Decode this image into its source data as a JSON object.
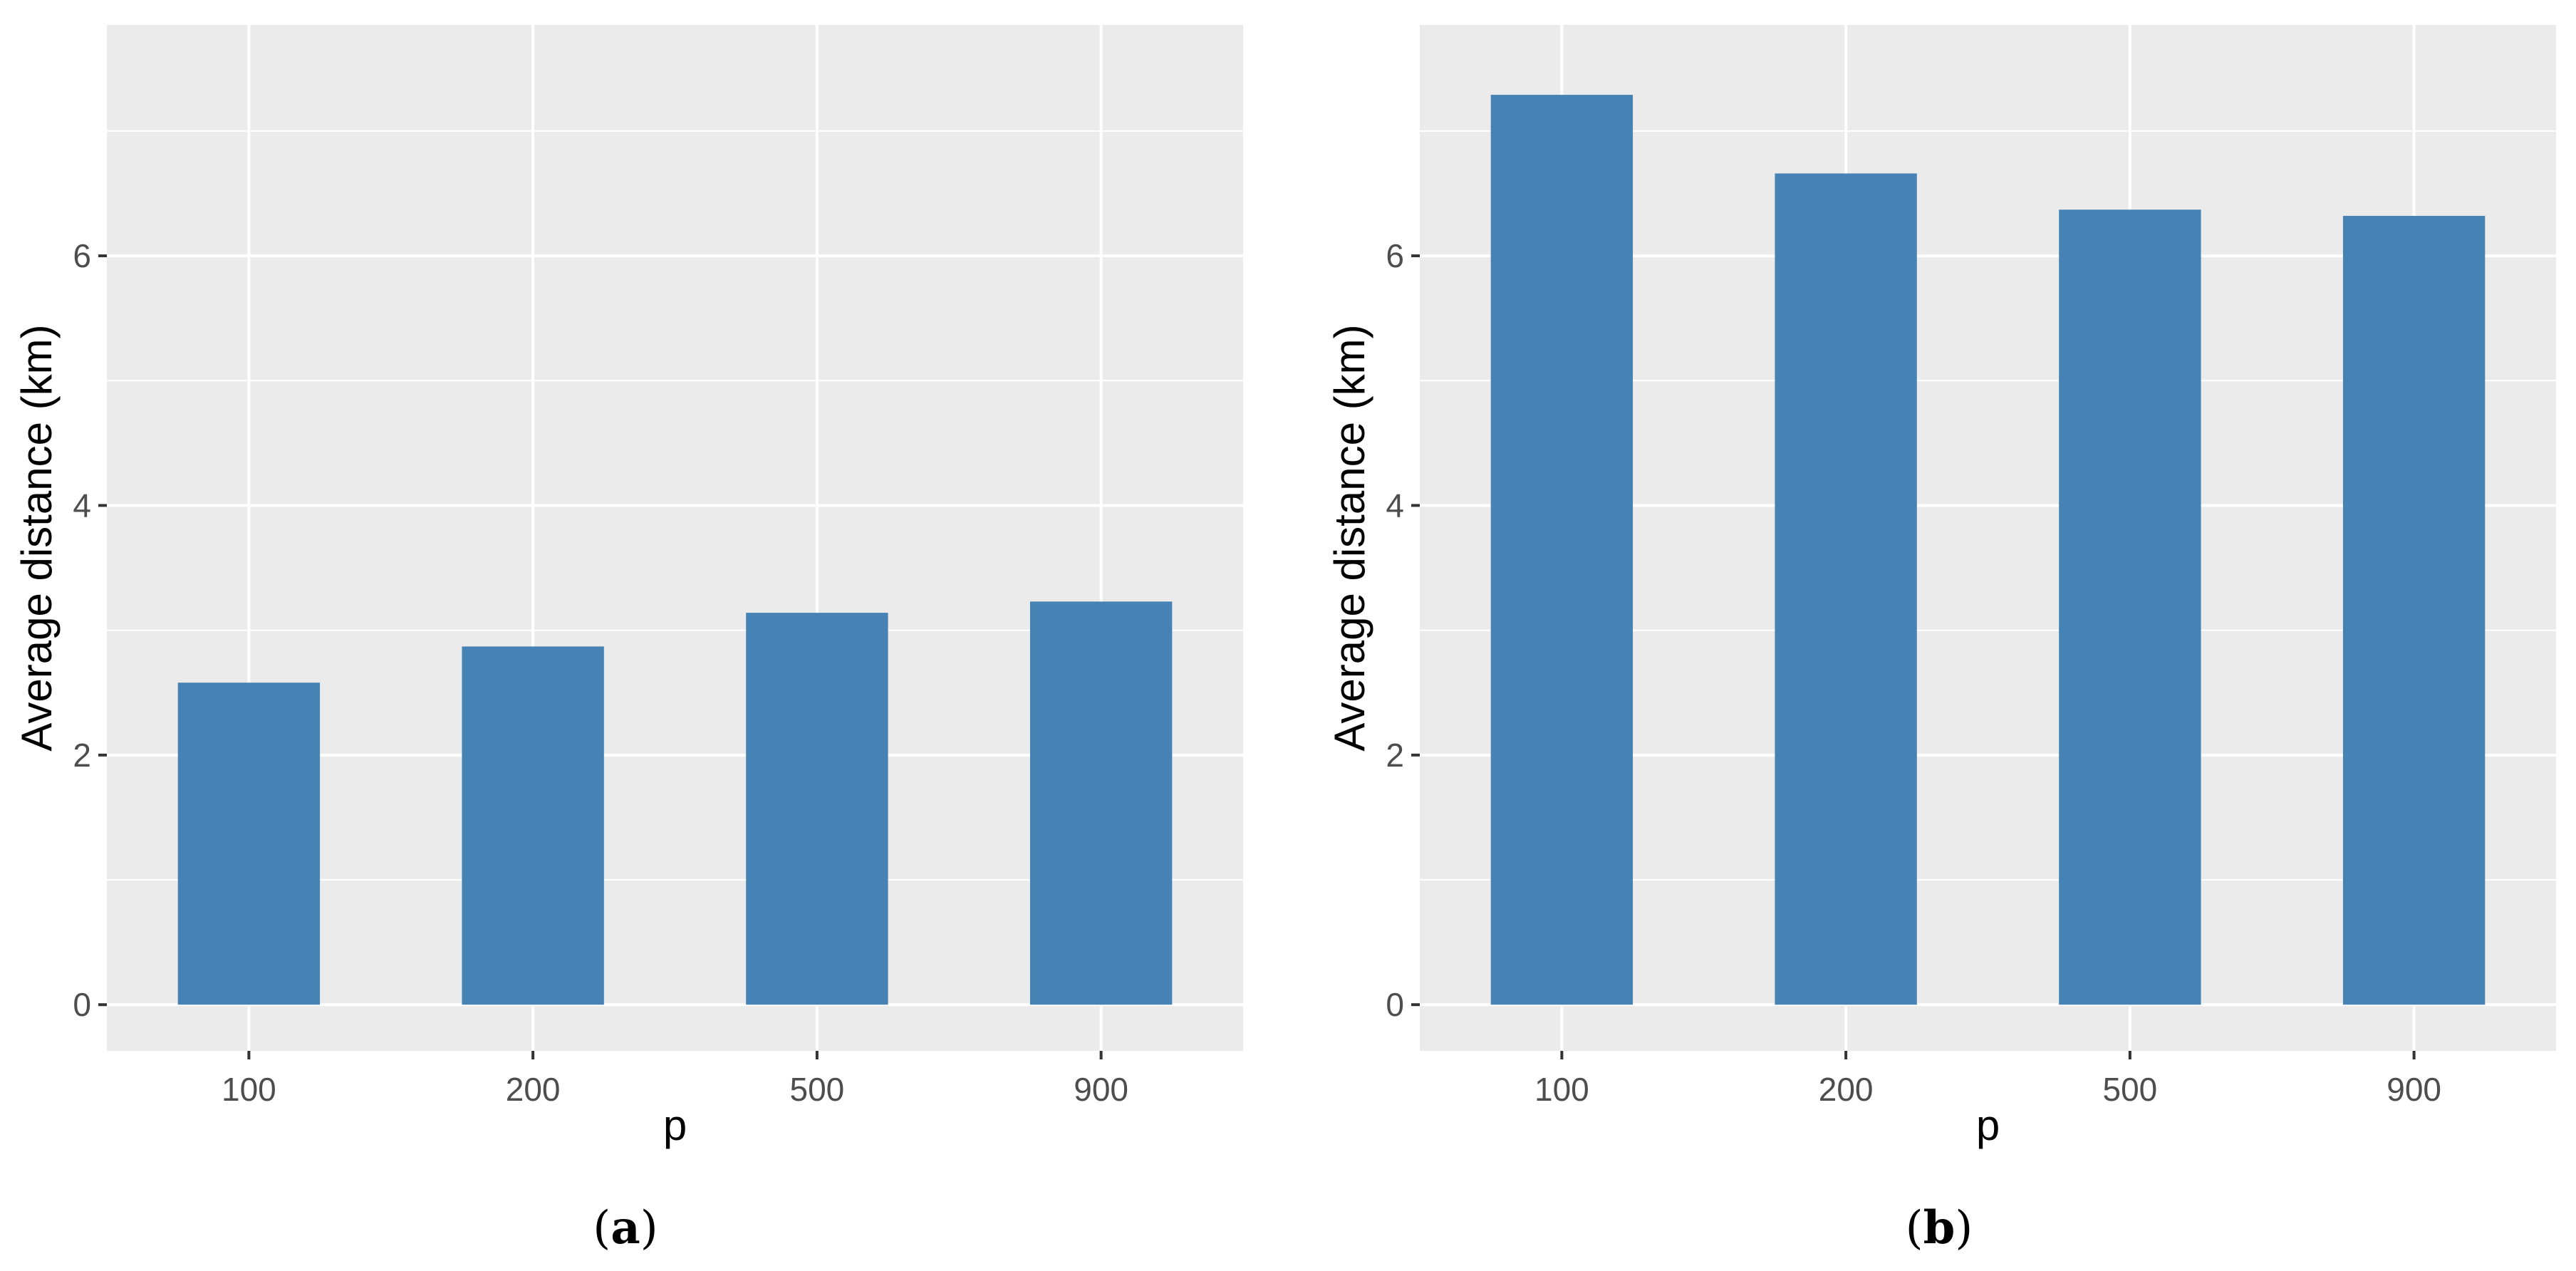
{
  "chart_data": [
    {
      "type": "bar",
      "panel_label": "a",
      "categories": [
        "100",
        "200",
        "500",
        "900"
      ],
      "values": [
        2.58,
        2.87,
        3.14,
        3.23
      ],
      "xlabel": "p",
      "ylabel": "Average distance (km)",
      "ylim": [
        -0.37,
        7.85
      ],
      "yticks": [
        0,
        2,
        4,
        6
      ],
      "grid": true,
      "bar_color": "#4682b4",
      "panel_background": "#ebebeb",
      "grid_color": "#ffffff"
    },
    {
      "type": "bar",
      "panel_label": "b",
      "categories": [
        "100",
        "200",
        "500",
        "900"
      ],
      "values": [
        7.29,
        6.66,
        6.37,
        6.32
      ],
      "xlabel": "p",
      "ylabel": "Average distance (km)",
      "ylim": [
        -0.37,
        7.85
      ],
      "yticks": [
        0,
        2,
        4,
        6
      ],
      "grid": true,
      "bar_color": "#4682b4",
      "panel_background": "#ebebeb",
      "grid_color": "#ffffff"
    }
  ]
}
